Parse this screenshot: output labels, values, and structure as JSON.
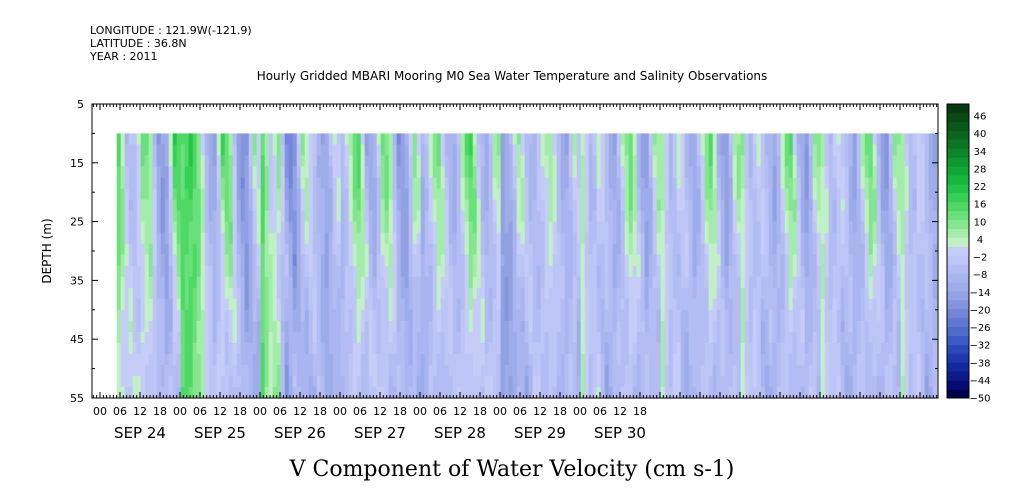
{
  "header": {
    "longitude": "LONGITUDE : 121.9W(-121.9)",
    "latitude": "LATITUDE : 36.8N",
    "year": "YEAR : 2011"
  },
  "chart_data": {
    "type": "heatmap",
    "title": "Hourly Gridded MBARI Mooring M0 Sea Water Temperature and Salinity Observations",
    "xlabel": "V Component of Water Velocity (cm s-1)",
    "ylabel": "DEPTH (m)",
    "ylim": [
      55,
      5
    ],
    "y_ticks": [
      5,
      15,
      25,
      35,
      45,
      55
    ],
    "data_depth_range": [
      10,
      55
    ],
    "x_hour_ticks": [
      "00",
      "06",
      "12",
      "18",
      "00",
      "06",
      "12",
      "18",
      "00",
      "06",
      "12",
      "18",
      "00",
      "06",
      "12",
      "18",
      "00",
      "06",
      "12",
      "18",
      "00",
      "06",
      "12",
      "18",
      "00",
      "06",
      "12",
      "18"
    ],
    "x_day_labels": [
      "SEP 24",
      "SEP 25",
      "SEP 26",
      "SEP 27",
      "SEP 28",
      "SEP 29",
      "SEP 30"
    ],
    "data_start_hour": 5,
    "colorbar": {
      "labels": [
        "46",
        "40",
        "34",
        "28",
        "22",
        "16",
        "10",
        "4",
        "−2",
        "−8",
        "−14",
        "−20",
        "−26",
        "−32",
        "−38",
        "−44",
        "−50"
      ],
      "levels": [
        -50,
        -47,
        -44,
        -41,
        -38,
        -35,
        -32,
        -29,
        -26,
        -23,
        -20,
        -17,
        -14,
        -11,
        -8,
        -5,
        -2,
        1,
        4,
        7,
        10,
        13,
        16,
        19,
        22,
        25,
        28,
        31,
        34,
        37,
        40,
        43,
        46,
        49
      ],
      "colors": [
        "#00004d",
        "#050b70",
        "#0c1a8c",
        "#14289e",
        "#1d37ad",
        "#2a48bb",
        "#3a5ac5",
        "#4e6ccc",
        "#6178d3",
        "#7386d9",
        "#8494de",
        "#92a1e3",
        "#9facea",
        "#aab5ef",
        "#b3bdf3",
        "#bcc5f6",
        "#c6ccf8",
        "#c2f0c6",
        "#a3ecaa",
        "#86e690",
        "#6ae07a",
        "#4fd866",
        "#36d055",
        "#22c547",
        "#15b73c",
        "#0fa834",
        "#0d972e",
        "#0c8628",
        "#0b7523",
        "#0a661e",
        "#095719",
        "#084914",
        "#073c10"
      ]
    },
    "day_phase": [
      [
        0.2,
        0.45,
        0.7,
        -0.4,
        -0.2,
        0.55,
        0.35,
        -0.9,
        -0.6,
        0.9,
        0.5
      ],
      [
        0.7,
        0.85,
        0.4,
        -0.5,
        -0.6,
        0.8,
        0.4,
        -0.9,
        -0.8,
        0.4,
        -0.2
      ],
      [
        0.7,
        -0.2,
        0.4,
        -0.95,
        -0.8,
        0.5,
        -0.1,
        -0.5,
        -0.7,
        0.2,
        -0.1
      ],
      [
        -0.3,
        0.3,
        0.65,
        -0.6,
        -0.5,
        0.7,
        0.2,
        -0.9,
        -0.6,
        0.6,
        -0.5
      ],
      [
        -0.4,
        0.1,
        0.5,
        -0.4,
        -0.5,
        0.3,
        0.8,
        -0.3,
        -0.6,
        0.3,
        0.4
      ],
      [
        -0.6,
        -0.5,
        0.4,
        -0.4,
        -0.3,
        0.1,
        0.3,
        -0.4,
        -0.6,
        0.3,
        -0.4
      ],
      [
        0.3,
        -0.5,
        0.1,
        -0.3,
        -0.6,
        0.2,
        0.6,
        -0.5,
        -0.8,
        0.4,
        0.3
      ]
    ]
  }
}
